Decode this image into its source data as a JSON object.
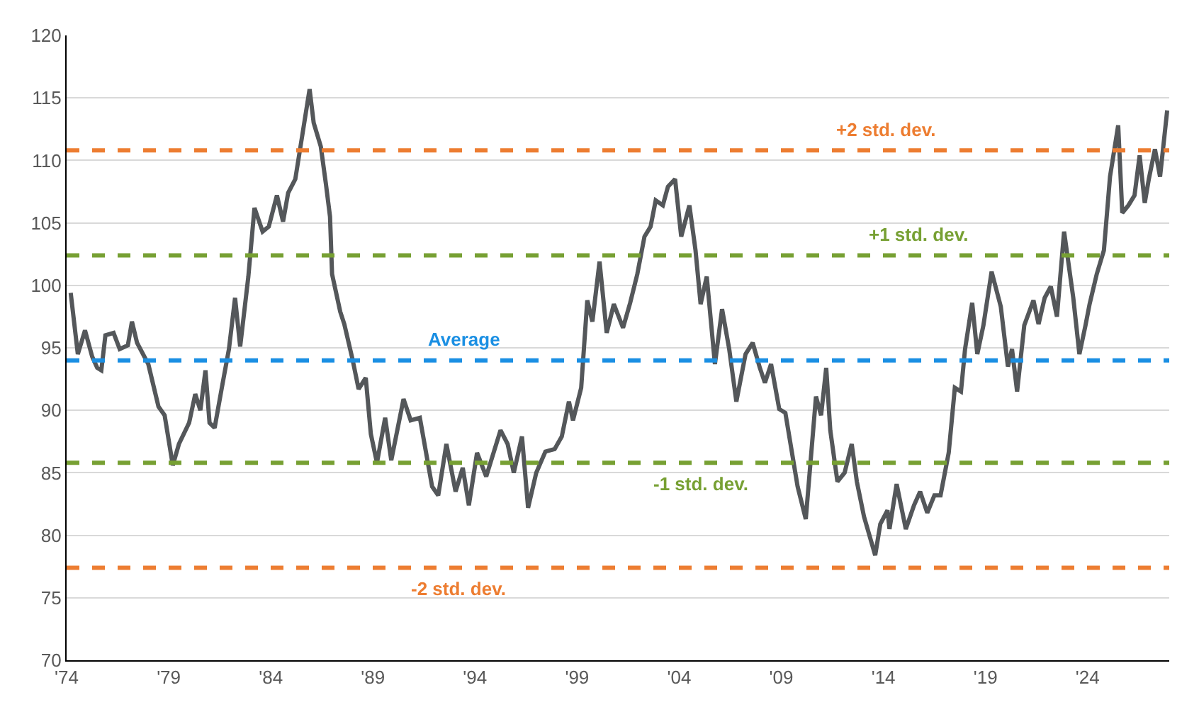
{
  "chart_data": {
    "type": "line",
    "x": [
      1974.2,
      1974.55,
      1974.9,
      1975.25,
      1975.5,
      1975.7,
      1975.9,
      1976.3,
      1976.6,
      1977.0,
      1977.2,
      1977.45,
      1978.0,
      1978.5,
      1978.8,
      1979.2,
      1979.5,
      1980.0,
      1980.3,
      1980.55,
      1980.8,
      1981.0,
      1981.25,
      1981.6,
      1981.95,
      1982.25,
      1982.5,
      1982.9,
      1983.2,
      1983.6,
      1983.9,
      1984.3,
      1984.6,
      1984.85,
      1985.2,
      1985.55,
      1985.9,
      1986.1,
      1986.45,
      1986.7,
      1986.9,
      1987.0,
      1987.4,
      1987.6,
      1988.0,
      1988.3,
      1988.65,
      1988.9,
      1989.2,
      1989.6,
      1989.9,
      1990.5,
      1990.85,
      1991.3,
      1991.9,
      1992.2,
      1992.6,
      1993.05,
      1993.4,
      1993.7,
      1994.1,
      1994.55,
      1995.25,
      1995.6,
      1995.9,
      1996.3,
      1996.6,
      1997.0,
      1997.45,
      1997.9,
      1998.25,
      1998.6,
      1998.8,
      1999.2,
      1999.5,
      1999.75,
      2000.1,
      2000.45,
      2000.8,
      2001.25,
      2001.6,
      2001.95,
      2002.3,
      2002.6,
      2002.85,
      2003.2,
      2003.45,
      2003.8,
      2004.1,
      2004.5,
      2004.8,
      2005.05,
      2005.35,
      2005.75,
      2006.1,
      2006.45,
      2006.8,
      2007.25,
      2007.6,
      2007.95,
      2008.2,
      2008.5,
      2008.9,
      2009.2,
      2009.8,
      2010.2,
      2010.7,
      2010.95,
      2011.2,
      2011.4,
      2011.75,
      2012.1,
      2012.45,
      2012.7,
      2013.05,
      2013.6,
      2013.85,
      2014.2,
      2014.3,
      2014.65,
      2015.1,
      2015.5,
      2015.8,
      2016.15,
      2016.5,
      2016.8,
      2017.2,
      2017.5,
      2017.8,
      2018.0,
      2018.35,
      2018.6,
      2018.9,
      2019.3,
      2019.75,
      2020.1,
      2020.3,
      2020.55,
      2020.9,
      2021.35,
      2021.6,
      2021.9,
      2022.2,
      2022.5,
      2022.85,
      2023.3,
      2023.6,
      2023.9,
      2024.1,
      2024.45,
      2024.8,
      2025.1,
      2025.5,
      2025.7,
      2026.0,
      2026.3,
      2026.55,
      2026.8,
      2027.0,
      2027.3,
      2027.55,
      2027.9
    ],
    "series": [
      {
        "color": "#54575a",
        "values": [
          99.4,
          94.5,
          96.4,
          94.3,
          93.4,
          93.2,
          96.0,
          96.2,
          94.9,
          95.2,
          97.1,
          95.4,
          93.7,
          90.3,
          89.6,
          85.6,
          87.3,
          89.0,
          91.3,
          90.0,
          93.2,
          89.0,
          88.6,
          91.8,
          94.9,
          99.0,
          95.1,
          100.7,
          106.2,
          104.3,
          104.7,
          107.2,
          105.1,
          107.4,
          108.5,
          112.1,
          115.7,
          113.0,
          111.1,
          108.1,
          105.5,
          100.9,
          97.9,
          96.9,
          94.1,
          91.7,
          92.6,
          88.1,
          85.8,
          89.4,
          86.0,
          90.9,
          89.2,
          89.4,
          83.9,
          83.2,
          87.3,
          83.5,
          85.4,
          82.4,
          86.6,
          84.7,
          88.4,
          87.3,
          85.0,
          87.9,
          82.2,
          85.0,
          86.7,
          86.9,
          87.9,
          90.7,
          89.2,
          91.8,
          98.8,
          97.1,
          101.9,
          96.2,
          98.5,
          96.6,
          98.6,
          100.9,
          103.9,
          104.7,
          106.8,
          106.4,
          107.9,
          108.5,
          103.9,
          106.4,
          102.8,
          98.5,
          100.7,
          93.7,
          98.1,
          94.9,
          90.7,
          94.5,
          95.4,
          93.4,
          92.2,
          93.7,
          90.1,
          89.8,
          83.9,
          81.3,
          91.1,
          89.6,
          93.4,
          88.4,
          84.3,
          85.0,
          87.3,
          84.3,
          81.5,
          78.4,
          80.9,
          82.0,
          80.5,
          84.1,
          80.5,
          82.4,
          83.5,
          81.8,
          83.2,
          83.2,
          86.6,
          91.8,
          91.5,
          94.9,
          98.6,
          94.5,
          96.8,
          101.1,
          98.3,
          93.5,
          94.9,
          91.5,
          96.8,
          98.8,
          96.9,
          99.0,
          99.9,
          97.5,
          104.3,
          99.0,
          94.5,
          96.8,
          98.5,
          100.9,
          102.8,
          108.7,
          112.8,
          105.8,
          106.4,
          107.2,
          110.4,
          106.6,
          108.5,
          110.9,
          108.7,
          114.0
        ]
      }
    ],
    "xlim": [
      1974,
      2028
    ],
    "xticks": [
      {
        "value": 1974,
        "label": "'74"
      },
      {
        "value": 1979,
        "label": "'79"
      },
      {
        "value": 1984,
        "label": "'84"
      },
      {
        "value": 1989,
        "label": "'89"
      },
      {
        "value": 1994,
        "label": "'94"
      },
      {
        "value": 1999,
        "label": "'99"
      },
      {
        "value": 2004,
        "label": "'04"
      },
      {
        "value": 2009,
        "label": "'09"
      },
      {
        "value": 2014,
        "label": "'14"
      },
      {
        "value": 2019,
        "label": "'19"
      },
      {
        "value": 2024,
        "label": "'24"
      }
    ],
    "ylim": [
      70,
      120
    ],
    "yticks": [
      70,
      75,
      80,
      85,
      90,
      95,
      100,
      105,
      110,
      115,
      120
    ],
    "grid": "y",
    "ref_lines": [
      {
        "axis": "y",
        "value": 110.8,
        "label": "+2 std. dev.",
        "color": "#ed7d31",
        "line_style": "dashed"
      },
      {
        "axis": "y",
        "value": 102.4,
        "label": "+1 std. dev.",
        "color": "#77a033",
        "line_style": "dashed"
      },
      {
        "axis": "y",
        "value": 94.0,
        "label": "Average",
        "color": "#1a8fe3",
        "line_style": "dashed"
      },
      {
        "axis": "y",
        "value": 85.8,
        "label": "-1 std. dev.",
        "color": "#77a033",
        "line_style": "dashed"
      },
      {
        "axis": "y",
        "value": 77.4,
        "label": "-2 std. dev.",
        "color": "#ed7d31",
        "line_style": "dashed"
      }
    ]
  }
}
